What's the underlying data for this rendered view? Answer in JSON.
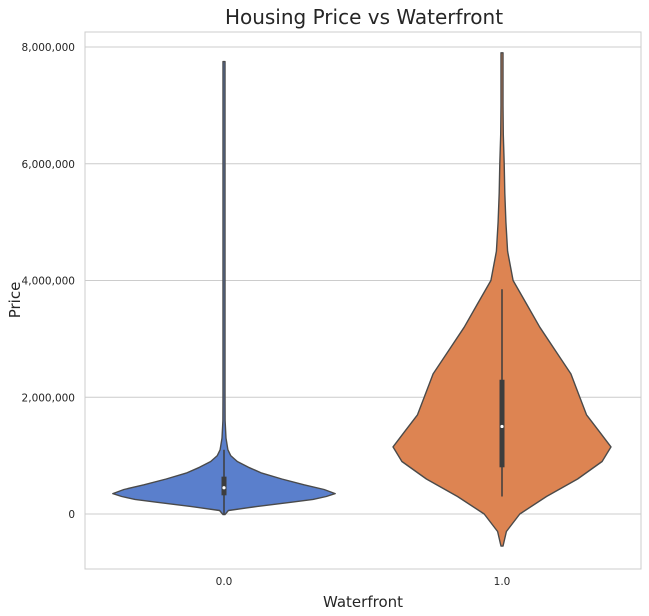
{
  "chart_data": {
    "type": "violin",
    "title": "Housing Price vs Waterfront",
    "xlabel": "Waterfront",
    "ylabel": "Price",
    "categories": [
      "0.0",
      "1.0"
    ],
    "ylim": [
      -1000000,
      8400000
    ],
    "yticks": [
      0,
      2000000,
      4000000,
      6000000,
      8000000
    ],
    "ytick_labels": [
      "0",
      "2,000,000",
      "4,000,000",
      "6,000,000",
      "8,000,000"
    ],
    "grid": "horizontal",
    "series": [
      {
        "category": "0.0",
        "color": "#5a7fcc",
        "min": -10000,
        "q1": 320000,
        "median": 450000,
        "q3": 640000,
        "max": 7750000,
        "whisker_low": -10000,
        "whisker_high": 1100000,
        "density": [
          [
            -10000,
            0.0
          ],
          [
            60000,
            0.04
          ],
          [
            130000,
            0.3
          ],
          [
            200000,
            0.6
          ],
          [
            250000,
            0.8
          ],
          [
            300000,
            0.92
          ],
          [
            350000,
            1.0
          ],
          [
            420000,
            0.9
          ],
          [
            500000,
            0.72
          ],
          [
            600000,
            0.52
          ],
          [
            700000,
            0.34
          ],
          [
            800000,
            0.22
          ],
          [
            900000,
            0.12
          ],
          [
            1000000,
            0.06
          ],
          [
            1100000,
            0.035
          ],
          [
            1300000,
            0.018
          ],
          [
            1600000,
            0.01
          ],
          [
            2000000,
            0.006
          ],
          [
            2600000,
            0.004
          ],
          [
            3500000,
            0.003
          ],
          [
            4500000,
            0.002
          ],
          [
            6000000,
            0.002
          ],
          [
            7750000,
            0.0
          ]
        ]
      },
      {
        "category": "1.0",
        "color": "#dd8452",
        "min": -550000,
        "q1": 800000,
        "median": 1500000,
        "q3": 2300000,
        "max": 7900000,
        "whisker_low": 300000,
        "whisker_high": 3850000,
        "density": [
          [
            -550000,
            0.0
          ],
          [
            -300000,
            0.04
          ],
          [
            0,
            0.16
          ],
          [
            300000,
            0.4
          ],
          [
            600000,
            0.68
          ],
          [
            900000,
            0.9
          ],
          [
            1150000,
            0.98
          ],
          [
            1400000,
            0.88
          ],
          [
            1700000,
            0.76
          ],
          [
            2000000,
            0.7
          ],
          [
            2400000,
            0.62
          ],
          [
            2800000,
            0.48
          ],
          [
            3200000,
            0.34
          ],
          [
            3600000,
            0.22
          ],
          [
            4000000,
            0.1
          ],
          [
            4500000,
            0.05
          ],
          [
            5000000,
            0.035
          ],
          [
            5500000,
            0.025
          ],
          [
            6000000,
            0.02
          ],
          [
            6500000,
            0.012
          ],
          [
            7000000,
            0.008
          ],
          [
            7500000,
            0.004
          ],
          [
            7900000,
            0.0
          ]
        ]
      }
    ]
  }
}
